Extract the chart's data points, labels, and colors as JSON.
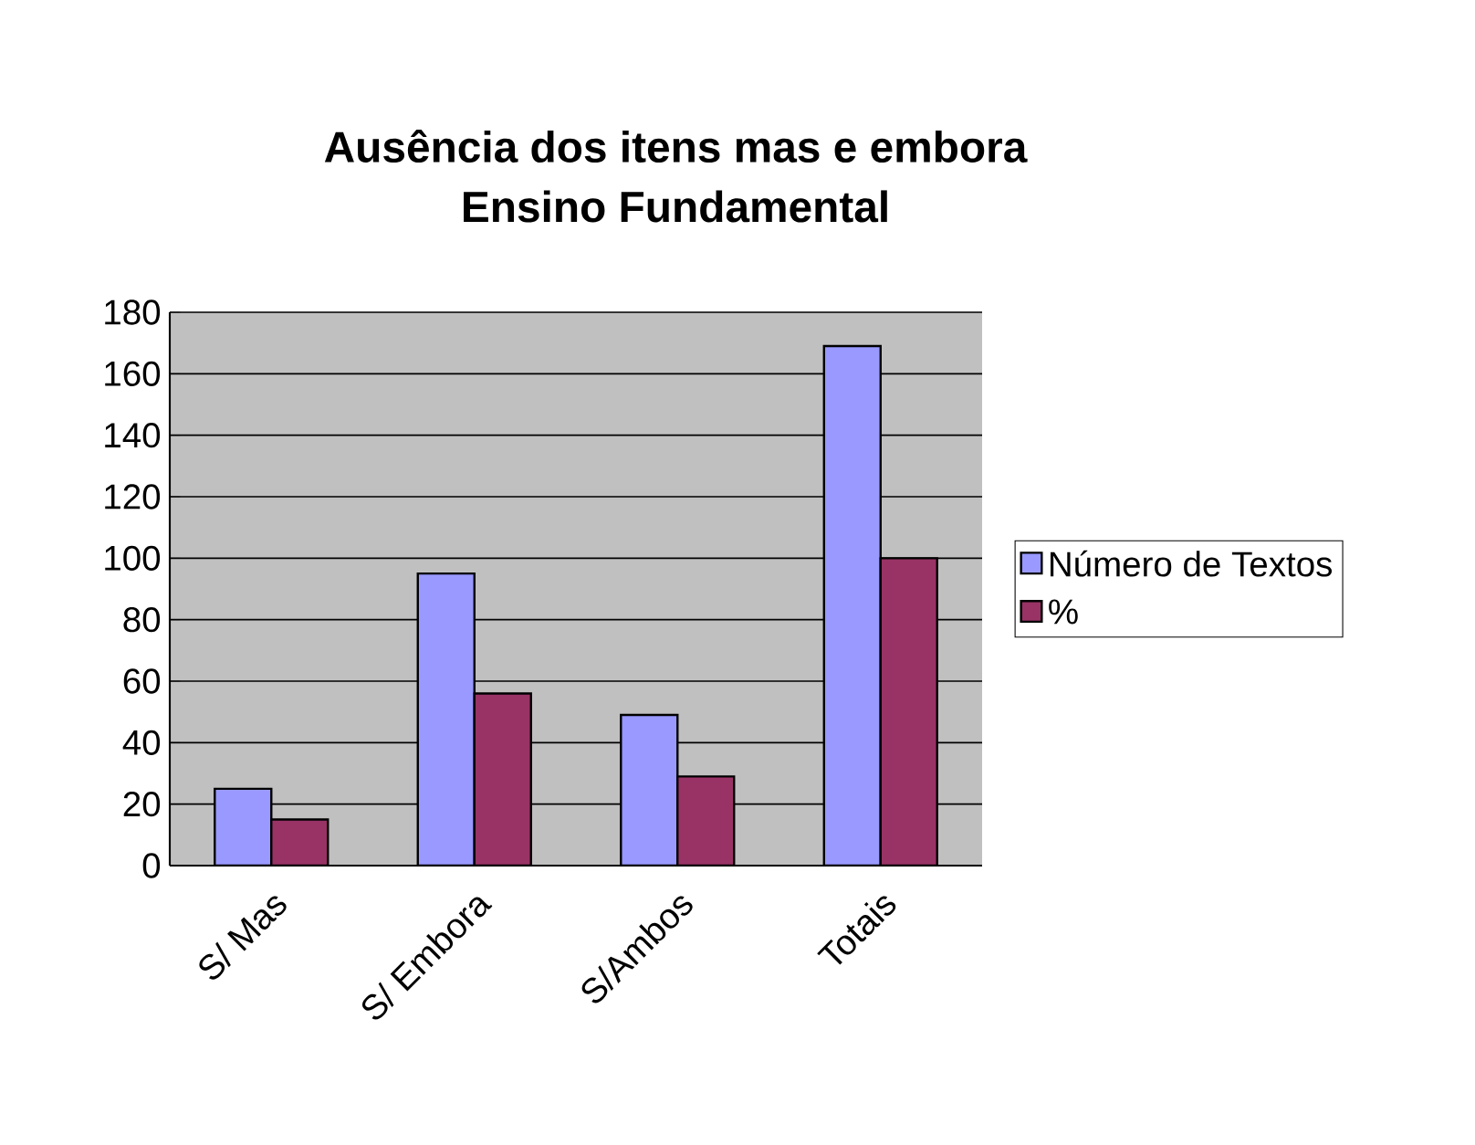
{
  "chart_data": {
    "type": "bar",
    "title": "Ausência dos itens mas e embora",
    "subtitle": "Ensino Fundamental",
    "categories": [
      "S/ Mas",
      "S/ Embora",
      "S/Ambos",
      "Totais"
    ],
    "series": [
      {
        "name": "Número de Textos",
        "color": "#9999ff",
        "values": [
          25,
          95,
          49,
          169
        ]
      },
      {
        "name": "%",
        "color": "#993366",
        "values": [
          15,
          56,
          29,
          100
        ]
      }
    ],
    "ylim": [
      0,
      180
    ],
    "yticks": [
      0,
      20,
      40,
      60,
      80,
      100,
      120,
      140,
      160,
      180
    ],
    "grid": "y",
    "legend": "right"
  }
}
